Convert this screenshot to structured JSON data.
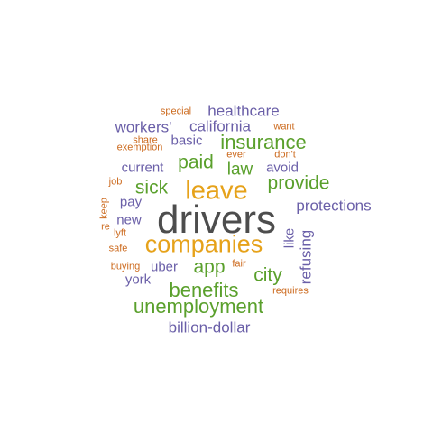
{
  "colors": {
    "dark": "#4d4d4d",
    "orange": "#e6a21a",
    "green": "#5aa02c",
    "purple": "#6a5fa8",
    "rust": "#cc6a1e"
  },
  "words": [
    {
      "text": "drivers",
      "color": "dark"
    },
    {
      "text": "companies",
      "color": "orange"
    },
    {
      "text": "leave",
      "color": "orange"
    },
    {
      "text": "unemployment",
      "color": "green"
    },
    {
      "text": "insurance",
      "color": "green"
    },
    {
      "text": "benefits",
      "color": "green"
    },
    {
      "text": "provide",
      "color": "green"
    },
    {
      "text": "sick",
      "color": "green"
    },
    {
      "text": "paid",
      "color": "green"
    },
    {
      "text": "app",
      "color": "green"
    },
    {
      "text": "city",
      "color": "green"
    },
    {
      "text": "law",
      "color": "green"
    },
    {
      "text": "healthcare",
      "color": "purple"
    },
    {
      "text": "california",
      "color": "purple"
    },
    {
      "text": "workers'",
      "color": "purple"
    },
    {
      "text": "protections",
      "color": "purple"
    },
    {
      "text": "billion-dollar",
      "color": "purple"
    },
    {
      "text": "refusing",
      "color": "purple"
    },
    {
      "text": "current",
      "color": "purple"
    },
    {
      "text": "basic",
      "color": "purple"
    },
    {
      "text": "avoid",
      "color": "purple"
    },
    {
      "text": "uber",
      "color": "purple"
    },
    {
      "text": "york",
      "color": "purple"
    },
    {
      "text": "like",
      "color": "purple"
    },
    {
      "text": "pay",
      "color": "purple"
    },
    {
      "text": "new",
      "color": "purple"
    },
    {
      "text": "special",
      "color": "rust"
    },
    {
      "text": "want",
      "color": "rust"
    },
    {
      "text": "share",
      "color": "rust"
    },
    {
      "text": "exemption",
      "color": "rust"
    },
    {
      "text": "ever",
      "color": "rust"
    },
    {
      "text": "don't",
      "color": "rust"
    },
    {
      "text": "job",
      "color": "rust"
    },
    {
      "text": "keep",
      "color": "rust"
    },
    {
      "text": "re",
      "color": "rust"
    },
    {
      "text": "lyft",
      "color": "rust"
    },
    {
      "text": "safe",
      "color": "rust"
    },
    {
      "text": "buying",
      "color": "rust"
    },
    {
      "text": "fair",
      "color": "rust"
    },
    {
      "text": "requires",
      "color": "rust"
    }
  ]
}
